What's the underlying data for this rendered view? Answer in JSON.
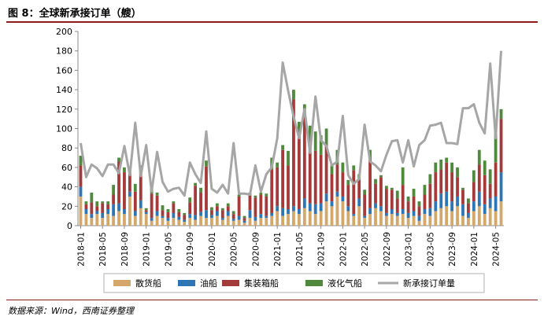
{
  "figure": {
    "title": "图 8：全球新承接订单（艘）",
    "source": "数据来源：Wind，西南证券整理"
  },
  "colors": {
    "bulk": "#d4a76a",
    "tanker": "#2e75b6",
    "container": "#a53a3a",
    "gas": "#4f8a3c",
    "total": "#a6a6a6",
    "axis": "#888888",
    "rule": "#8a1c1c"
  },
  "chart_data": {
    "type": "bar",
    "stacked": true,
    "title": "",
    "xlabel": "",
    "ylabel": "",
    "ylim": [
      0,
      200
    ],
    "yticks": [
      0,
      20,
      40,
      60,
      80,
      100,
      120,
      140,
      160,
      180,
      200
    ],
    "legend_position": "bottom",
    "grid": false,
    "x": [
      "2018-01",
      "2018-02",
      "2018-03",
      "2018-04",
      "2018-05",
      "2018-06",
      "2018-07",
      "2018-08",
      "2018-09",
      "2018-10",
      "2018-11",
      "2018-12",
      "2019-01",
      "2019-02",
      "2019-03",
      "2019-04",
      "2019-05",
      "2019-06",
      "2019-07",
      "2019-08",
      "2019-09",
      "2019-10",
      "2019-11",
      "2019-12",
      "2020-01",
      "2020-02",
      "2020-03",
      "2020-04",
      "2020-05",
      "2020-06",
      "2020-07",
      "2020-08",
      "2020-09",
      "2020-10",
      "2020-11",
      "2020-12",
      "2021-01",
      "2021-02",
      "2021-03",
      "2021-04",
      "2021-05",
      "2021-06",
      "2021-07",
      "2021-08",
      "2021-09",
      "2021-10",
      "2021-11",
      "2021-12",
      "2022-01",
      "2022-02",
      "2022-03",
      "2022-04",
      "2022-05",
      "2022-06",
      "2022-07",
      "2022-08",
      "2022-09",
      "2022-10",
      "2022-11",
      "2022-12",
      "2023-01",
      "2023-02",
      "2023-03",
      "2023-04",
      "2023-05",
      "2023-06",
      "2023-07",
      "2023-08",
      "2023-09",
      "2023-10",
      "2023-11",
      "2023-12",
      "2024-01",
      "2024-02",
      "2024-03",
      "2024-04",
      "2024-05",
      "2024-06"
    ],
    "x_tick_labels": [
      "2018-01",
      "2018-05",
      "2018-09",
      "2019-01",
      "2019-05",
      "2019-09",
      "2020-01",
      "2020-05",
      "2020-09",
      "2021-01",
      "2021-05",
      "2021-09",
      "2022-01",
      "2022-05",
      "2022-09",
      "2023-01",
      "2023-05",
      "2023-09",
      "2024-01",
      "2024-05"
    ],
    "x_tick_every": 4,
    "series": [
      {
        "name": "散货船",
        "kind": "bar",
        "color_key": "bulk",
        "values": [
          30,
          12,
          8,
          12,
          8,
          12,
          10,
          15,
          12,
          30,
          10,
          18,
          12,
          5,
          10,
          8,
          5,
          8,
          6,
          4,
          8,
          6,
          10,
          8,
          8,
          10,
          6,
          10,
          5,
          6,
          3,
          8,
          5,
          8,
          8,
          10,
          15,
          10,
          12,
          15,
          12,
          18,
          15,
          12,
          15,
          25,
          20,
          30,
          25,
          15,
          10,
          20,
          8,
          12,
          18,
          15,
          10,
          12,
          10,
          12,
          8,
          10,
          5,
          12,
          10,
          15,
          18,
          20,
          15,
          20,
          10,
          8,
          15,
          20,
          12,
          18,
          15,
          25
        ]
      },
      {
        "name": "油船",
        "kind": "bar",
        "color_key": "tanker",
        "values": [
          10,
          5,
          4,
          3,
          5,
          5,
          12,
          8,
          5,
          5,
          5,
          8,
          2,
          3,
          5,
          2,
          3,
          5,
          3,
          2,
          4,
          5,
          4,
          8,
          3,
          5,
          2,
          5,
          2,
          4,
          2,
          8,
          4,
          4,
          2,
          3,
          5,
          8,
          5,
          5,
          5,
          10,
          8,
          10,
          8,
          8,
          5,
          5,
          5,
          5,
          2,
          8,
          2,
          6,
          5,
          5,
          3,
          5,
          3,
          5,
          5,
          5,
          5,
          5,
          8,
          10,
          15,
          15,
          10,
          10,
          12,
          5,
          10,
          15,
          10,
          10,
          15,
          30
        ]
      },
      {
        "name": "集装箱船",
        "kind": "bar",
        "color_key": "container",
        "values": [
          22,
          5,
          12,
          5,
          10,
          5,
          10,
          43,
          38,
          20,
          20,
          28,
          2,
          25,
          16,
          6,
          6,
          10,
          5,
          5,
          12,
          30,
          20,
          45,
          5,
          5,
          8,
          5,
          5,
          20,
          3,
          15,
          20,
          20,
          20,
          45,
          40,
          60,
          45,
          110,
          80,
          85,
          65,
          55,
          50,
          50,
          28,
          28,
          25,
          22,
          45,
          20,
          22,
          50,
          20,
          30,
          25,
          20,
          15,
          25,
          12,
          15,
          10,
          15,
          25,
          30,
          25,
          30,
          30,
          20,
          15,
          10,
          20,
          28,
          30,
          15,
          35,
          55
        ]
      },
      {
        "name": "液化气船",
        "kind": "bar",
        "color_key": "gas",
        "values": [
          10,
          3,
          10,
          5,
          2,
          3,
          10,
          4,
          5,
          5,
          8,
          8,
          2,
          5,
          3,
          5,
          3,
          2,
          3,
          2,
          5,
          3,
          5,
          6,
          3,
          3,
          2,
          3,
          3,
          2,
          2,
          3,
          2,
          2,
          3,
          12,
          5,
          5,
          15,
          10,
          10,
          12,
          15,
          20,
          20,
          17,
          10,
          15,
          10,
          5,
          5,
          5,
          5,
          10,
          5,
          2,
          3,
          2,
          8,
          18,
          5,
          8,
          5,
          10,
          10,
          10,
          10,
          5,
          10,
          10,
          2,
          5,
          12,
          15,
          15,
          15,
          30,
          10
        ]
      },
      {
        "name": "新承接订单量",
        "kind": "line",
        "color_key": "total",
        "values": [
          85,
          50,
          63,
          59,
          51,
          63,
          63,
          54,
          82,
          52,
          106,
          51,
          83,
          35,
          76,
          45,
          35,
          38,
          39,
          31,
          65,
          53,
          44,
          97,
          38,
          34,
          42,
          33,
          85,
          33,
          33,
          32,
          62,
          35,
          53,
          60,
          90,
          168,
          139,
          112,
          90,
          120,
          75,
          133,
          88,
          82,
          62,
          66,
          113,
          52,
          43,
          48,
          104,
          66,
          62,
          56,
          73,
          87,
          88,
          65,
          88,
          61,
          83,
          88,
          103,
          104,
          106,
          85,
          85,
          84,
          121,
          121,
          125,
          106,
          95,
          167,
          90,
          180
        ]
      }
    ]
  }
}
